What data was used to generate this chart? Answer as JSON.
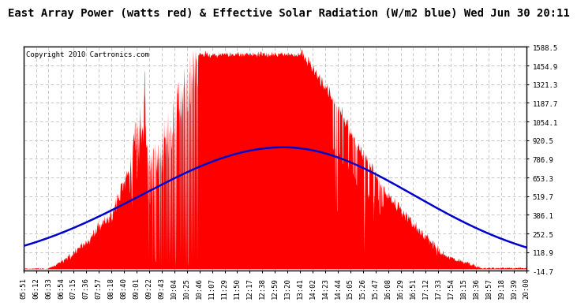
{
  "title": "East Array Power (watts red) & Effective Solar Radiation (W/m2 blue) Wed Jun 30 20:11",
  "copyright": "Copyright 2010 Cartronics.com",
  "background_color": "#ffffff",
  "plot_bg_color": "#ffffff",
  "grid_color": "#c8c8c8",
  "ymin": -14.7,
  "ymax": 1588.5,
  "yticks": [
    -14.7,
    118.9,
    252.5,
    386.1,
    519.7,
    653.3,
    786.9,
    920.5,
    1054.1,
    1187.7,
    1321.3,
    1454.9,
    1588.5
  ],
  "x_tick_labels": [
    "05:51",
    "06:12",
    "06:33",
    "06:54",
    "07:15",
    "07:36",
    "07:57",
    "08:18",
    "08:40",
    "09:01",
    "09:22",
    "09:43",
    "10:04",
    "10:25",
    "10:46",
    "11:07",
    "11:29",
    "11:50",
    "12:17",
    "12:38",
    "12:59",
    "13:20",
    "13:41",
    "14:02",
    "14:23",
    "14:44",
    "15:05",
    "15:26",
    "15:47",
    "16:08",
    "16:29",
    "16:51",
    "17:12",
    "17:33",
    "17:54",
    "18:15",
    "18:36",
    "18:57",
    "19:18",
    "19:39",
    "20:00"
  ],
  "power_color": "#ff0000",
  "radiation_color": "#0000cc",
  "title_fontsize": 10,
  "tick_fontsize": 6.5,
  "copyright_fontsize": 6.5
}
